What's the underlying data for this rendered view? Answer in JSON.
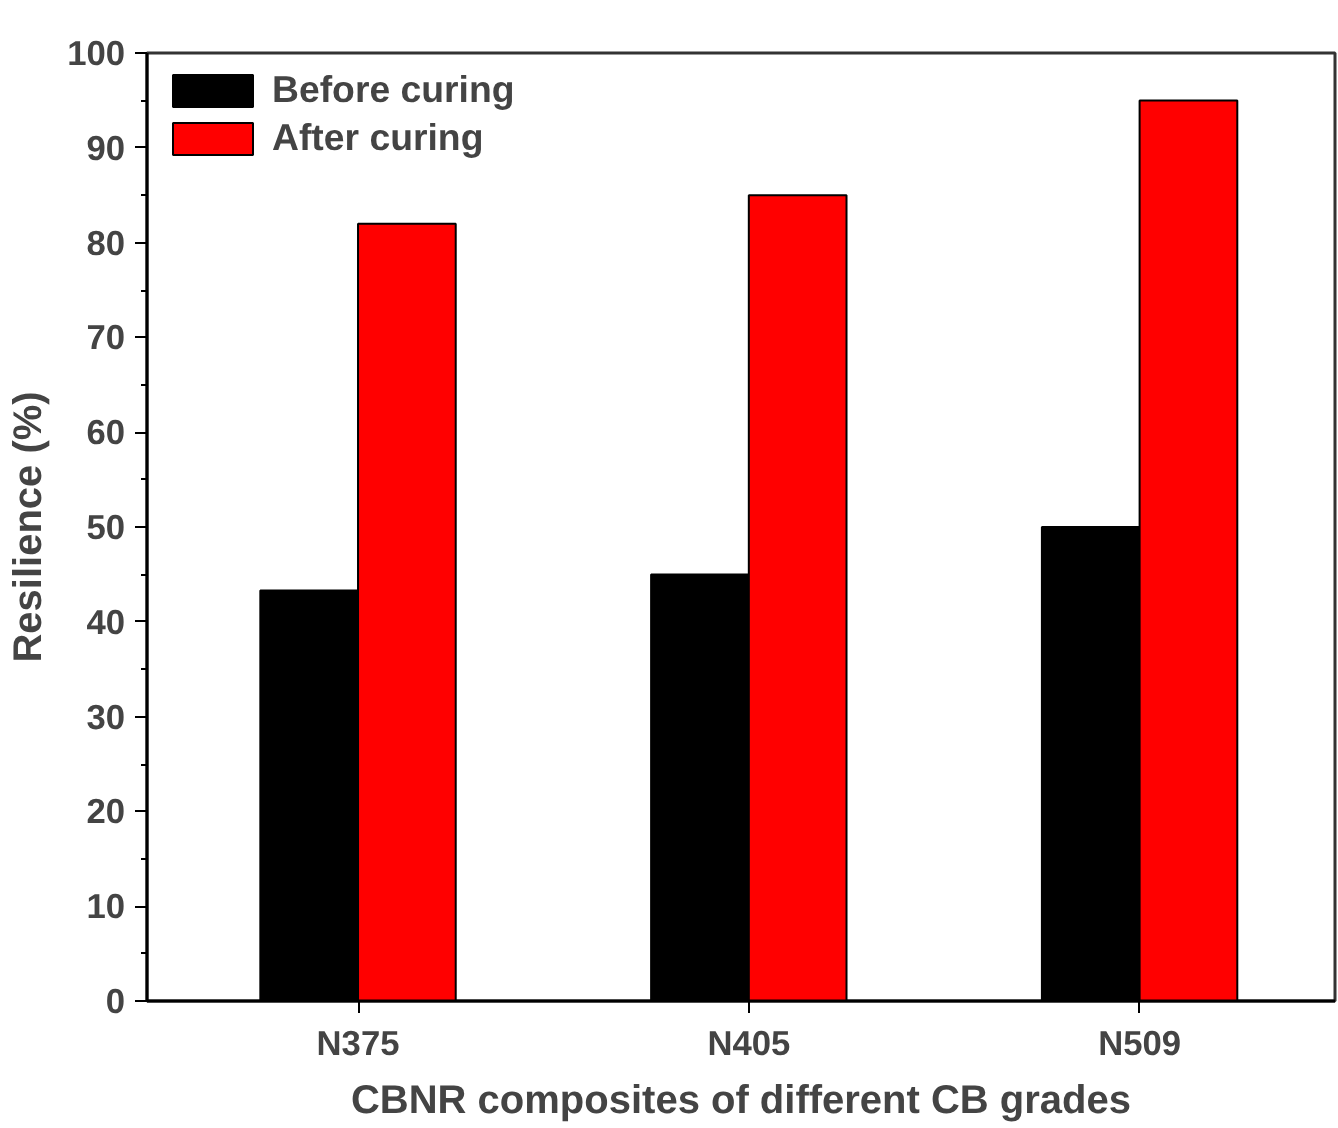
{
  "chart_data": {
    "type": "bar",
    "xlabel": "CBNR composites of different CB grades",
    "ylabel": "Resilience (%)",
    "categories": [
      "N375",
      "N405",
      "N509"
    ],
    "series": [
      {
        "name": "Before curing",
        "color": "#000000",
        "values": [
          43.3,
          45,
          50
        ]
      },
      {
        "name": "After curing",
        "color": "#ff0000",
        "values": [
          82,
          85,
          95
        ]
      }
    ],
    "ylim": [
      0,
      100
    ],
    "yticks": [
      0,
      10,
      20,
      30,
      40,
      50,
      60,
      70,
      80,
      90,
      100
    ],
    "legend": "top left",
    "grid": false
  }
}
